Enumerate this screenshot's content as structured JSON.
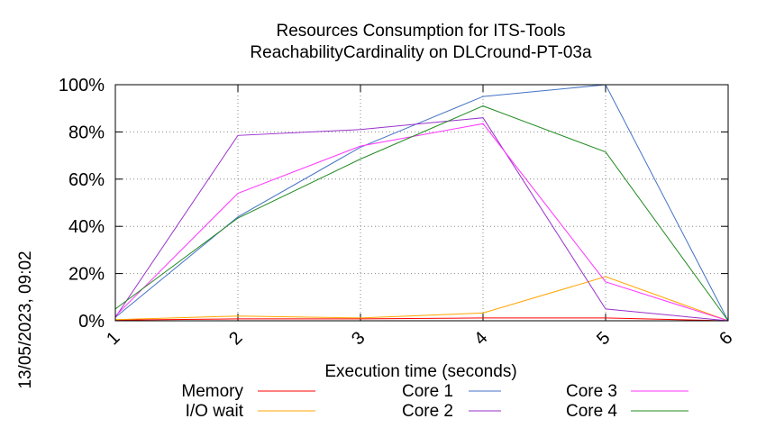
{
  "chart_data": {
    "type": "line",
    "title_line1": "Resources Consumption for ITS-Tools",
    "title_line2": "ReachabilityCardinality on DLCround-PT-03a",
    "xlabel": "Execution time (seconds)",
    "side_label": "13/05/2023, 09:02",
    "x": [
      1,
      2,
      3,
      4,
      5,
      6
    ],
    "xlim": [
      1,
      6
    ],
    "ylim": [
      0,
      100
    ],
    "y_ticks": [
      0,
      20,
      40,
      60,
      80,
      100
    ],
    "y_tick_labels": [
      "0%",
      "20%",
      "40%",
      "60%",
      "80%",
      "100%"
    ],
    "x_tick_labels": [
      "1",
      "2",
      "3",
      "4",
      "5",
      "6"
    ],
    "grid": true,
    "legend_position": "bottom",
    "series": [
      {
        "name": "Memory",
        "color": "#ff0000",
        "values": [
          0.3,
          0.8,
          0.8,
          1.2,
          1.2,
          0
        ]
      },
      {
        "name": "I/O wait",
        "color": "#ffa500",
        "values": [
          0.5,
          2.0,
          1.2,
          3.3,
          18.7,
          0
        ]
      },
      {
        "name": "Core 1",
        "color": "#4472c4",
        "values": [
          1.5,
          44.0,
          73.5,
          95.0,
          100.0,
          0
        ]
      },
      {
        "name": "Core 2",
        "color": "#9932cc",
        "values": [
          1.5,
          78.5,
          81.0,
          86.0,
          5.0,
          0
        ]
      },
      {
        "name": "Core 3",
        "color": "#ff33ff",
        "values": [
          2.0,
          54.0,
          74.0,
          83.5,
          16.5,
          0
        ]
      },
      {
        "name": "Core 4",
        "color": "#228b22",
        "values": [
          5.0,
          43.5,
          68.5,
          91.0,
          71.5,
          0
        ]
      }
    ]
  }
}
